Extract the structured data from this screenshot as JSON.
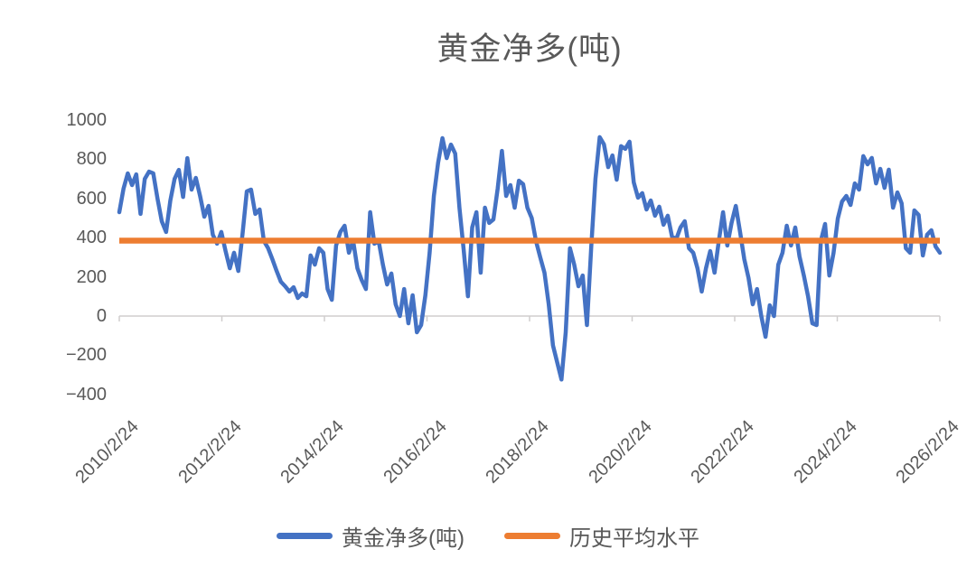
{
  "title": "黄金净多(吨)",
  "legend": [
    {
      "label": "黄金净多(吨)",
      "color": "#4472C4"
    },
    {
      "label": "历史平均水平",
      "color": "#ED7D31"
    }
  ],
  "colors": {
    "series_line": "#4472C4",
    "average_line": "#ED7D31",
    "text": "#595959",
    "axis": "#D0CECE"
  },
  "chart_data": {
    "type": "line",
    "title": "黄金净多(吨)",
    "legend_position": "bottom",
    "gridlines": false,
    "ylim": [
      -400,
      1000
    ],
    "y_tick_values": [
      1000,
      800,
      600,
      400,
      200,
      0,
      -200,
      -400
    ],
    "y_tick_labels": [
      "1000",
      "800",
      "600",
      "400",
      "200",
      "0",
      "−200",
      "−400"
    ],
    "x_tick_labels": [
      "2010/2/24",
      "2012/2/24",
      "2014/2/24",
      "2016/2/24",
      "2018/2/24",
      "2020/2/24",
      "2022/2/24",
      "2024/2/24",
      "2026/2/24"
    ],
    "series": [
      {
        "name": "黄金净多(吨)",
        "color": "#4472C4",
        "sampling": "monthly-approximation of weekly data",
        "x_start_label": "2010/2/24",
        "x_end_label": "2026/2/24",
        "values": [
          530,
          650,
          728,
          668,
          723,
          521,
          700,
          737,
          728,
          599,
          484,
          429,
          590,
          700,
          746,
          608,
          806,
          645,
          705,
          613,
          507,
          562,
          415,
          369,
          429,
          332,
          244,
          323,
          230,
          420,
          636,
          645,
          521,
          544,
          383,
          346,
          290,
          230,
          175,
          152,
          125,
          147,
          92,
          115,
          101,
          309,
          262,
          346,
          323,
          138,
          83,
          360,
          429,
          461,
          323,
          383,
          244,
          184,
          138,
          530,
          369,
          383,
          262,
          161,
          217,
          60,
          0,
          138,
          -37,
          106,
          -83,
          -46,
          106,
          323,
          613,
          783,
          908,
          806,
          875,
          829,
          553,
          337,
          101,
          452,
          530,
          221,
          553,
          475,
          493,
          650,
          843,
          613,
          668,
          553,
          691,
          673,
          553,
          500,
          383,
          300,
          221,
          60,
          -150,
          -237,
          -324,
          -83,
          346,
          262,
          152,
          207,
          -46,
          350,
          700,
          913,
          876,
          760,
          820,
          696,
          867,
          853,
          890,
          682,
          604,
          627,
          544,
          590,
          512,
          558,
          466,
          512,
          406,
          392,
          452,
          484,
          346,
          323,
          244,
          125,
          244,
          332,
          221,
          383,
          530,
          360,
          475,
          562,
          430,
          290,
          194,
          60,
          138,
          0,
          -106,
          55,
          0,
          262,
          323,
          461,
          360,
          452,
          304,
          207,
          100,
          -37,
          -46,
          383,
          470,
          207,
          323,
          498,
          585,
          613,
          567,
          677,
          645,
          816,
          774,
          807,
          677,
          751,
          654,
          747,
          553,
          631,
          575,
          346,
          323,
          539,
          516,
          309,
          415,
          438,
          355,
          323
        ]
      },
      {
        "name": "历史平均水平",
        "color": "#ED7D31",
        "type": "constant",
        "value": 385
      }
    ]
  }
}
